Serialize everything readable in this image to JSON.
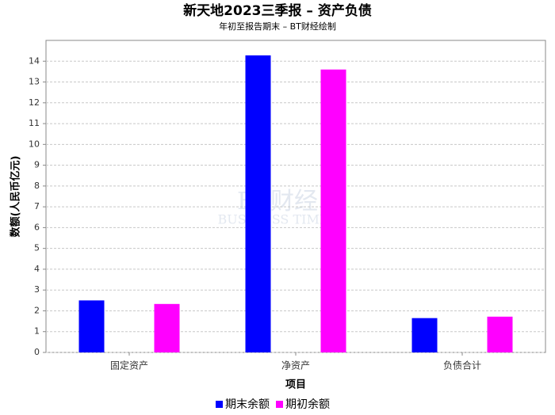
{
  "chart_data": {
    "type": "bar",
    "title": "新天地2023三季报 – 资产负债",
    "subtitle": "年初至报告期末 – BT财经绘制",
    "x_label": "项目",
    "y_label": "数额(人民币亿元)",
    "watermark": {
      "main": "BT财经",
      "sub": "BUSINESS TIMES"
    },
    "categories": [
      "固定资产",
      "净资产",
      "负债合计"
    ],
    "series": [
      {
        "name": "期末余额",
        "color": "#0000ff",
        "values": [
          2.5,
          14.28,
          1.65
        ]
      },
      {
        "name": "期初余额",
        "color": "#ff00ff",
        "values": [
          2.33,
          13.6,
          1.72
        ]
      }
    ],
    "ylim": [
      0,
      15
    ],
    "yticks": [
      0,
      1,
      2,
      3,
      4,
      5,
      6,
      7,
      8,
      9,
      10,
      11,
      12,
      13,
      14
    ],
    "grid": true,
    "legend": "bottom"
  }
}
